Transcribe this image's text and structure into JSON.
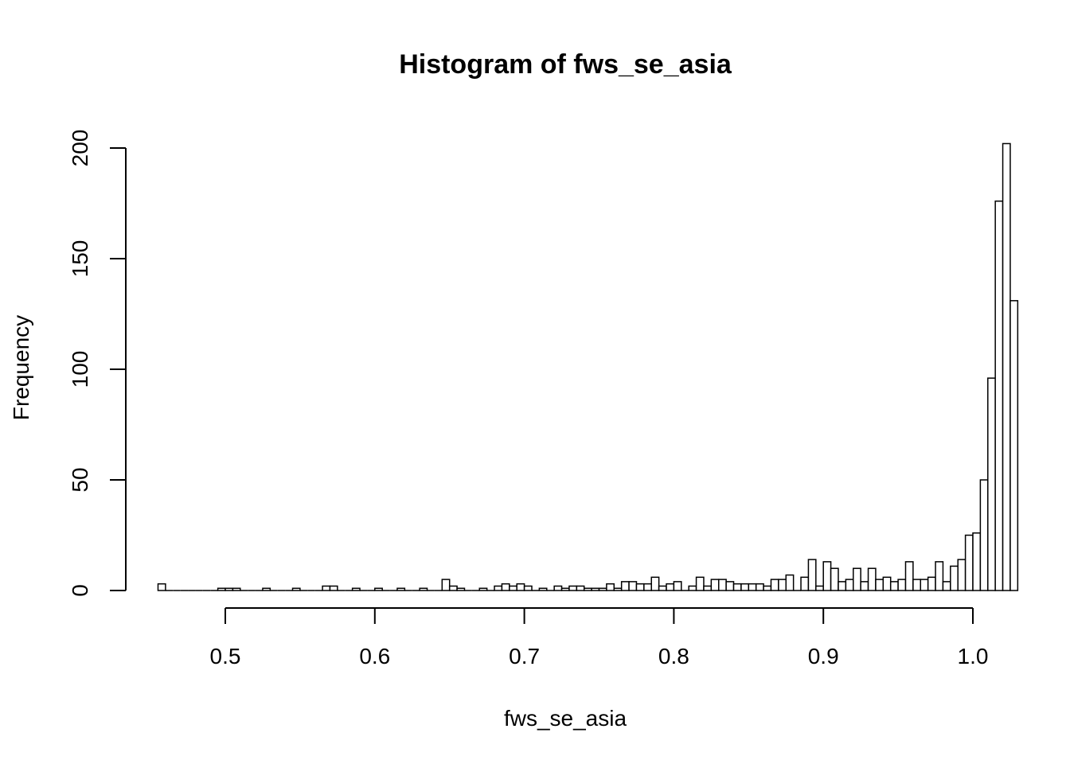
{
  "chart_data": {
    "type": "bar",
    "subtype": "histogram",
    "title": "Histogram of fws_se_asia",
    "xlabel": "fws_se_asia",
    "ylabel": "Frequency",
    "bin_width": 0.005,
    "x_start": 0.455,
    "xlim": [
      0.455,
      1.0
    ],
    "ylim": [
      0,
      200
    ],
    "x_ticks": [
      0.5,
      0.6,
      0.7,
      0.8,
      0.9,
      1.0
    ],
    "x_tick_labels": [
      "0.5",
      "0.6",
      "0.7",
      "0.8",
      "0.9",
      "1.0"
    ],
    "y_ticks": [
      0,
      50,
      100,
      150,
      200
    ],
    "y_tick_labels": [
      "0",
      "50",
      "100",
      "150",
      "200"
    ],
    "grid": false,
    "bar_fill": "#ffffff",
    "bar_stroke": "#000000",
    "values": [
      3,
      0,
      0,
      0,
      0,
      0,
      0,
      0,
      1,
      1,
      1,
      0,
      0,
      0,
      1,
      0,
      0,
      0,
      1,
      0,
      0,
      0,
      2,
      2,
      0,
      0,
      1,
      0,
      0,
      1,
      0,
      0,
      1,
      0,
      0,
      1,
      0,
      0,
      5,
      2,
      1,
      0,
      0,
      1,
      0,
      2,
      3,
      2,
      3,
      2,
      0,
      1,
      0,
      2,
      1,
      2,
      2,
      1,
      1,
      1,
      3,
      1,
      4,
      4,
      3,
      3,
      6,
      2,
      3,
      4,
      0,
      2,
      6,
      2,
      5,
      5,
      4,
      3,
      3,
      3,
      3,
      2,
      5,
      5,
      7,
      0,
      6,
      14,
      2,
      13,
      10,
      4,
      5,
      10,
      4,
      10,
      5,
      6,
      4,
      5,
      13,
      5,
      5,
      6,
      13,
      4,
      11,
      14,
      25,
      26,
      50,
      96,
      176,
      202,
      131
    ]
  }
}
